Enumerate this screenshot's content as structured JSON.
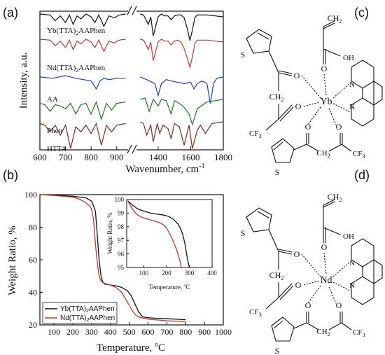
{
  "panels": {
    "a": "(a)",
    "b": "(b)",
    "c": "(c)",
    "d": "(d)"
  },
  "chart_data": [
    {
      "type": "line",
      "panel": "(a)",
      "xlabel": "Wavenumber, cm",
      "xlabel_sup": "-1",
      "ylabel": "Intensity, a.u.",
      "xticks": [
        "600",
        "700",
        "800",
        "900",
        "1400",
        "1600",
        "1800"
      ],
      "axis_break": [
        950,
        1250
      ],
      "y_ticks_shown": false,
      "series": [
        {
          "name": "Yb(TTA)2AAPhen",
          "label_parts": [
            "Yb(TTA)",
            "2",
            "AAPhen"
          ],
          "color": "#111111",
          "x": [
            600,
            640,
            660,
            680,
            700,
            715,
            730,
            745,
            760,
            780,
            800,
            815,
            830,
            850,
            870,
            890,
            910,
            935,
            1290,
            1310,
            1340,
            1355,
            1370,
            1400,
            1420,
            1440,
            1460,
            1480,
            1500,
            1520,
            1540,
            1560,
            1580,
            1595,
            1610,
            1625,
            1640,
            1660,
            1700,
            1750,
            1800
          ],
          "y": [
            97,
            96,
            90,
            95,
            88,
            96,
            86,
            95,
            92,
            97,
            94,
            88,
            96,
            84,
            95,
            93,
            96,
            97,
            97,
            96,
            86,
            94,
            74,
            94,
            97,
            95,
            95,
            91,
            95,
            96,
            96,
            93,
            81,
            69,
            80,
            93,
            96,
            96,
            96,
            95,
            94
          ]
        },
        {
          "name": "Nd(TTA)2AAPhen",
          "label_parts": [
            "Nd(TTA)",
            "2",
            "AAPhen"
          ],
          "color": "#c0392b",
          "x": [
            600,
            640,
            660,
            680,
            700,
            715,
            730,
            745,
            760,
            780,
            800,
            815,
            830,
            850,
            870,
            890,
            910,
            935,
            1290,
            1310,
            1340,
            1355,
            1370,
            1400,
            1420,
            1440,
            1460,
            1480,
            1500,
            1520,
            1540,
            1560,
            1580,
            1595,
            1610,
            1625,
            1640,
            1660,
            1700,
            1750,
            1800
          ],
          "y": [
            93,
            92,
            86,
            91,
            84,
            92,
            82,
            91,
            88,
            93,
            90,
            84,
            92,
            80,
            91,
            89,
            92,
            93,
            93,
            92,
            82,
            90,
            70,
            90,
            93,
            91,
            91,
            87,
            91,
            92,
            90,
            83,
            72,
            63,
            74,
            88,
            92,
            92,
            92,
            91,
            90
          ]
        },
        {
          "name": "AA",
          "label_parts": [
            "AA",
            "",
            ""
          ],
          "color": "#1f3fc8",
          "x": [
            600,
            650,
            700,
            740,
            770,
            800,
            820,
            835,
            850,
            870,
            900,
            935,
            1290,
            1330,
            1380,
            1400,
            1420,
            1450,
            1480,
            1520,
            1560,
            1600,
            1620,
            1640,
            1670,
            1700,
            1720,
            1740,
            1760,
            1800
          ],
          "y": [
            85,
            84,
            86,
            84,
            83,
            82,
            76,
            82,
            84,
            83,
            84,
            84,
            85,
            83,
            80,
            71,
            80,
            83,
            82,
            81,
            80,
            81,
            76,
            80,
            82,
            80,
            65,
            80,
            84,
            85
          ]
        },
        {
          "name": "Phen",
          "label_parts": [
            "Phen",
            "",
            ""
          ],
          "color": "#1e7b1e",
          "x": [
            600,
            620,
            640,
            660,
            680,
            700,
            720,
            740,
            760,
            780,
            800,
            820,
            840,
            860,
            880,
            900,
            935,
            1290,
            1320,
            1345,
            1370,
            1400,
            1420,
            1450,
            1480,
            1500,
            1530,
            1560,
            1590,
            1610,
            1640,
            1700,
            1800
          ],
          "y": [
            66,
            65,
            60,
            65,
            64,
            62,
            66,
            58,
            65,
            66,
            58,
            67,
            54,
            66,
            61,
            66,
            67,
            69,
            70,
            60,
            69,
            64,
            69,
            68,
            58,
            68,
            66,
            63,
            58,
            50,
            62,
            67,
            69
          ]
        },
        {
          "name": "HTTA",
          "label_parts": [
            "HTTA",
            "",
            ""
          ],
          "color": "#7b2a1e",
          "x": [
            600,
            620,
            640,
            660,
            680,
            700,
            720,
            740,
            760,
            780,
            800,
            820,
            840,
            860,
            880,
            900,
            935,
            1290,
            1310,
            1330,
            1355,
            1370,
            1395,
            1410,
            1430,
            1460,
            1480,
            1500,
            1530,
            1560,
            1590,
            1610,
            1640,
            1660,
            1690,
            1730,
            1800
          ],
          "y": [
            55,
            54,
            50,
            54,
            48,
            54,
            40,
            53,
            50,
            54,
            49,
            55,
            42,
            54,
            50,
            54,
            55,
            56,
            55,
            48,
            54,
            44,
            55,
            49,
            54,
            52,
            46,
            55,
            53,
            42,
            54,
            40,
            51,
            54,
            49,
            55,
            56
          ]
        }
      ]
    },
    {
      "type": "line",
      "panel": "(b)",
      "xlabel": "Temperature, ",
      "xlabel_unit": "C",
      "xlabel_sup": "o",
      "ylabel": "Weight Ratio, %",
      "xticks": [
        "100",
        "200",
        "300",
        "400",
        "500",
        "600",
        "700",
        "800",
        "900",
        "1000"
      ],
      "yticks": [
        "20",
        "40",
        "60",
        "80",
        "100"
      ],
      "xlim": [
        25,
        1000
      ],
      "ylim": [
        20,
        100
      ],
      "legend_placement": "bottom-left",
      "series": [
        {
          "name": "Yb(TTA)2AAPhen",
          "label_parts": [
            "Yb(TTA)",
            "2",
            "AAPhen"
          ],
          "color": "#111111",
          "x": [
            30,
            100,
            200,
            270,
            300,
            320,
            330,
            340,
            350,
            360,
            370,
            400,
            430,
            460,
            490,
            510,
            530,
            550,
            570,
            590,
            650,
            700,
            750,
            800
          ],
          "y": [
            100,
            99.7,
            99,
            98,
            96,
            90,
            75,
            60,
            50,
            46,
            45,
            44.5,
            44,
            43,
            41,
            38,
            33,
            28,
            25,
            24.5,
            24,
            23.8,
            23.5,
            23.2
          ]
        },
        {
          "name": "Nd(TTA)2AAPhen",
          "label_parts": [
            "Nd(TTA)",
            "2",
            "AAPhen"
          ],
          "color": "#c0392b",
          "x": [
            30,
            100,
            200,
            240,
            270,
            290,
            300,
            310,
            320,
            330,
            340,
            350,
            360,
            380,
            400,
            430,
            460,
            480,
            500,
            520,
            540,
            560,
            580,
            600,
            650,
            700,
            750,
            800
          ],
          "y": [
            100,
            99.5,
            98.5,
            97,
            95,
            93,
            91,
            85,
            70,
            58,
            50,
            47,
            46,
            45,
            44.5,
            43,
            40,
            36,
            32,
            28,
            25.5,
            24.5,
            24,
            23.5,
            23,
            22.5,
            22.3,
            22
          ]
        }
      ]
    },
    {
      "type": "line",
      "panel": "(b) inset",
      "xlabel": "Temperature, ",
      "xlabel_unit": "C",
      "xlabel_sup": "o",
      "ylabel": "Weight Ratio, %",
      "xticks": [
        "100",
        "200",
        "300",
        "400"
      ],
      "yticks": [
        "95",
        "96",
        "97",
        "98",
        "99",
        "100"
      ],
      "xlim": [
        25,
        400
      ],
      "ylim": [
        95,
        100
      ],
      "series": [
        {
          "name": "Yb(TTA)2AAPhen",
          "color": "#111111",
          "x": [
            30,
            50,
            70,
            90,
            110,
            130,
            150,
            170,
            190,
            210,
            230,
            250,
            260,
            270,
            280,
            290,
            300
          ],
          "y": [
            99.9,
            99.6,
            99.35,
            99.2,
            99.1,
            99.0,
            98.95,
            98.9,
            98.85,
            98.75,
            98.55,
            98.2,
            97.9,
            97.5,
            96.8,
            95.8,
            95.0
          ]
        },
        {
          "name": "Nd(TTA)2AAPhen",
          "color": "#c0392b",
          "x": [
            30,
            50,
            70,
            90,
            110,
            130,
            150,
            170,
            190,
            200,
            210,
            220,
            230,
            240,
            250,
            260,
            265
          ],
          "y": [
            99.9,
            99.3,
            98.9,
            98.7,
            98.6,
            98.5,
            98.4,
            98.3,
            98.1,
            97.9,
            97.6,
            97.3,
            96.9,
            96.5,
            96.0,
            95.4,
            95.0
          ]
        }
      ]
    }
  ],
  "structures": {
    "c": {
      "metal": "Yb",
      "labels": {
        "S1": "S",
        "S2": "S",
        "O1": "O",
        "O2": "O",
        "O3": "O",
        "O4": "O",
        "O5": "O",
        "OH": "OH",
        "N1": "N",
        "N2": "N",
        "CH2": "CH",
        "CH2_sub": "2",
        "CF3": "F",
        "CF3_sub": "3",
        "CF3_tail": "C",
        "CF3b": "CF",
        "CF3b_sub": "3",
        "CH2b": "CH",
        "CH2b_sub": "2",
        "CH2top": "CH",
        "CH2top_sub": "2"
      }
    },
    "d": {
      "metal": "Nd",
      "labels": {
        "S1": "S",
        "S2": "S",
        "O1": "O",
        "O2": "O",
        "O3": "O",
        "O4": "O",
        "O5": "O",
        "OH": "OH",
        "N1": "N",
        "N2": "N",
        "CH2": "CH",
        "CH2_sub": "2",
        "CF3": "F",
        "CF3_sub": "3",
        "CF3_tail": "C",
        "CF3b": "CF",
        "CF3b_sub": "3",
        "CH2b": "CH",
        "CH2b_sub": "2",
        "CH2top": "CH",
        "CH2top_sub": "2"
      }
    }
  }
}
